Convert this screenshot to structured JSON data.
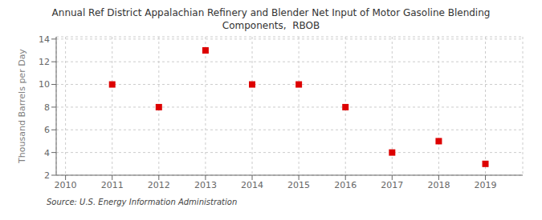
{
  "chart_data": {
    "type": "scatter",
    "title": "Annual Ref District Appalachian Refinery and Blender Net Input of Motor Gasoline Blending\nComponents,  RBOB",
    "y_label": "Thousand Barrels per Day",
    "annotations": [
      "Source: U.S. Energy Information Administration"
    ],
    "x": [
      2011,
      2012,
      2013,
      2014,
      2015,
      2016,
      2017,
      2018,
      2019
    ],
    "values": [
      10,
      8,
      13,
      10,
      10,
      8,
      4,
      5,
      3
    ],
    "color": "#dd0000",
    "marker": "square",
    "xlim": [
      2009.8,
      2019.8
    ],
    "ylim": [
      2,
      14.2
    ],
    "xticks": [
      2010,
      2011,
      2012,
      2013,
      2014,
      2015,
      2016,
      2017,
      2018,
      2019
    ],
    "yticks": [
      2,
      4,
      6,
      8,
      10,
      12,
      14
    ],
    "grid": true
  }
}
